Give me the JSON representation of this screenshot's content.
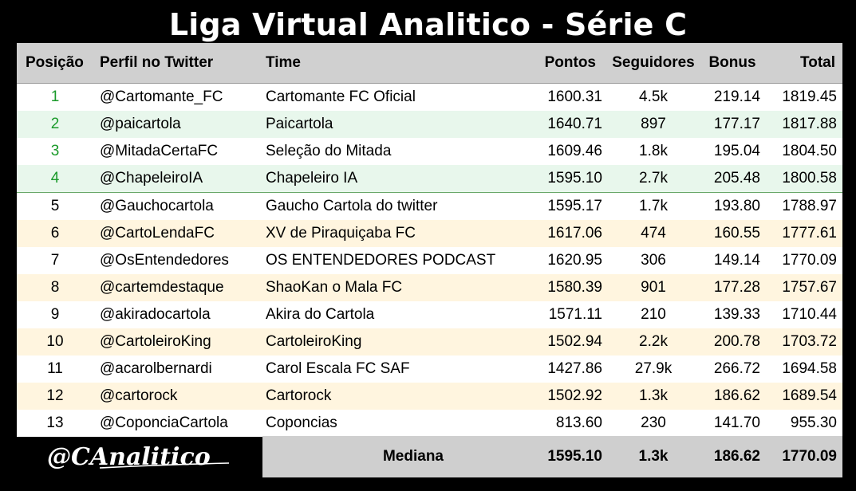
{
  "title": "Liga Virtual Analitico - Série C",
  "headers": {
    "pos": "Posição",
    "handle": "Perfil no Twitter",
    "team": "Time",
    "points": "Pontos",
    "followers": "Seguidores",
    "bonus": "Bonus",
    "total": "Total"
  },
  "rows": [
    {
      "pos": "1",
      "handle": "@Cartomante_FC",
      "team": "Cartomante FC Oficial",
      "points": "1600.31",
      "followers": "4.5k",
      "bonus": "219.14",
      "total": "1819.45"
    },
    {
      "pos": "2",
      "handle": "@paicartola",
      "team": "Paicartola",
      "points": "1640.71",
      "followers": "897",
      "bonus": "177.17",
      "total": "1817.88"
    },
    {
      "pos": "3",
      "handle": "@MitadaCertaFC",
      "team": "Seleção do Mitada",
      "points": "1609.46",
      "followers": "1.8k",
      "bonus": "195.04",
      "total": "1804.50"
    },
    {
      "pos": "4",
      "handle": "@ChapeleiroIA",
      "team": "Chapeleiro IA",
      "points": "1595.10",
      "followers": "2.7k",
      "bonus": "205.48",
      "total": "1800.58"
    },
    {
      "pos": "5",
      "handle": "@Gauchocartola",
      "team": "Gaucho Cartola do twitter",
      "points": "1595.17",
      "followers": "1.7k",
      "bonus": "193.80",
      "total": "1788.97"
    },
    {
      "pos": "6",
      "handle": "@CartoLendaFC",
      "team": "XV de Piraquiçaba FC",
      "points": "1617.06",
      "followers": "474",
      "bonus": "160.55",
      "total": "1777.61"
    },
    {
      "pos": "7",
      "handle": "@OsEntendedores",
      "team": "OS ENTENDEDORES PODCAST",
      "points": "1620.95",
      "followers": "306",
      "bonus": "149.14",
      "total": "1770.09"
    },
    {
      "pos": "8",
      "handle": "@cartemdestaque",
      "team": "ShaoKan o Mala FC",
      "points": "1580.39",
      "followers": "901",
      "bonus": "177.28",
      "total": "1757.67"
    },
    {
      "pos": "9",
      "handle": "@akiradocartola",
      "team": "Akira do Cartola",
      "points": "1571.11",
      "followers": "210",
      "bonus": "139.33",
      "total": "1710.44"
    },
    {
      "pos": "10",
      "handle": "@CartoleiroKing",
      "team": "CartoleiroKing",
      "points": "1502.94",
      "followers": "2.2k",
      "bonus": "200.78",
      "total": "1703.72"
    },
    {
      "pos": "11",
      "handle": "@acarolbernardi",
      "team": "Carol Escala FC SAF",
      "points": "1427.86",
      "followers": "27.9k",
      "bonus": "266.72",
      "total": "1694.58"
    },
    {
      "pos": "12",
      "handle": "@cartorock",
      "team": "Cartorock",
      "points": "1502.92",
      "followers": "1.3k",
      "bonus": "186.62",
      "total": "1689.54"
    },
    {
      "pos": "13",
      "handle": "@CoponciaCartola",
      "team": "Coponcias",
      "points": "813.60",
      "followers": "230",
      "bonus": "141.70",
      "total": "955.30"
    }
  ],
  "median": {
    "label": "Mediana",
    "points": "1595.10",
    "followers": "1.3k",
    "bonus": "186.62",
    "total": "1770.09"
  },
  "logo_text": "@CAnalitico",
  "colors": {
    "background": "#000000",
    "header_bg": "#d0d0d0",
    "row_green": "#e8f7ec",
    "row_cream": "#fff5df",
    "position_green": "#1a9a2a",
    "median_bg": "#cfcfcf"
  }
}
